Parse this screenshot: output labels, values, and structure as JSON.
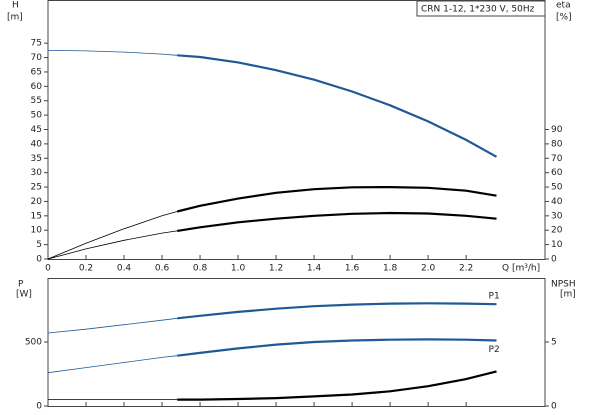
{
  "chart_data": [
    {
      "type": "line",
      "annotation": "CRN 1-12, 1*230 V, 50Hz",
      "ylabel": "H",
      "yunit": "[m]",
      "y2label": "eta",
      "y2unit": "[%]",
      "xlabel": "Q [m³/h]",
      "x": [
        0,
        0.2,
        0.4,
        0.6,
        0.68,
        0.8,
        1.0,
        1.2,
        1.4,
        1.6,
        1.8,
        2.0,
        2.2,
        2.36
      ],
      "bold_from_x": 0.68,
      "xlim": [
        0,
        2.615
      ],
      "xticks": [
        0,
        0.2,
        0.4,
        0.6,
        0.8,
        {
          "value": 1,
          "label": "1.0"
        },
        1.2,
        1.4,
        1.6,
        1.8,
        {
          "value": 2,
          "label": "2.0"
        },
        2.2
      ],
      "ylim": [
        0,
        90
      ],
      "yticks": [
        0,
        5,
        10,
        15,
        20,
        25,
        30,
        35,
        40,
        45,
        50,
        55,
        60,
        65,
        70,
        75
      ],
      "y2lim": [
        0,
        180
      ],
      "y2ticks": [
        0,
        10,
        20,
        30,
        40,
        50,
        60,
        70,
        80,
        90
      ],
      "series": [
        {
          "color": "#1f5a96",
          "values": [
            72.5,
            72.3,
            71.9,
            71.2,
            70.8,
            70.2,
            68.3,
            65.6,
            62.3,
            58.2,
            53.4,
            47.8,
            41.4,
            35.5
          ]
        },
        {
          "color": "#000000",
          "axis": "y2",
          "values": [
            0,
            11,
            21,
            30,
            33,
            37,
            42,
            46,
            48.5,
            49.8,
            50,
            49.5,
            47.5,
            44
          ]
        },
        {
          "color": "#000000",
          "axis": "y2",
          "values": [
            0,
            7,
            13,
            18,
            19.5,
            22,
            25.5,
            28,
            30,
            31.4,
            32,
            31.6,
            30,
            28
          ]
        }
      ]
    },
    {
      "type": "line",
      "ylabel": "P",
      "yunit": "[W]",
      "y2label": "NPSH",
      "y2unit": "[m]",
      "x": [
        0,
        0.2,
        0.4,
        0.6,
        0.68,
        0.8,
        1.0,
        1.2,
        1.4,
        1.6,
        1.8,
        2.0,
        2.2,
        2.36
      ],
      "bold_from_x": 0.68,
      "xlim": [
        0,
        2.615
      ],
      "ylim": [
        0,
        1000
      ],
      "yticks": [
        0,
        500
      ],
      "y2lim": [
        0,
        10
      ],
      "y2ticks": [
        0,
        5
      ],
      "series": [
        {
          "name": "P1",
          "color": "#1f5a96",
          "values": [
            570,
            600,
            635,
            670,
            685,
            705,
            735,
            760,
            780,
            792,
            800,
            802,
            800,
            795
          ]
        },
        {
          "name": "P2",
          "color": "#1f5a96",
          "values": [
            260,
            300,
            340,
            380,
            393,
            415,
            450,
            480,
            500,
            512,
            518,
            520,
            518,
            512
          ]
        },
        {
          "color": "#000000",
          "axis": "y2",
          "values": [
            0.5,
            0.5,
            0.5,
            0.5,
            0.5,
            0.5,
            0.55,
            0.62,
            0.75,
            0.9,
            1.15,
            1.55,
            2.1,
            2.7
          ]
        }
      ]
    }
  ]
}
